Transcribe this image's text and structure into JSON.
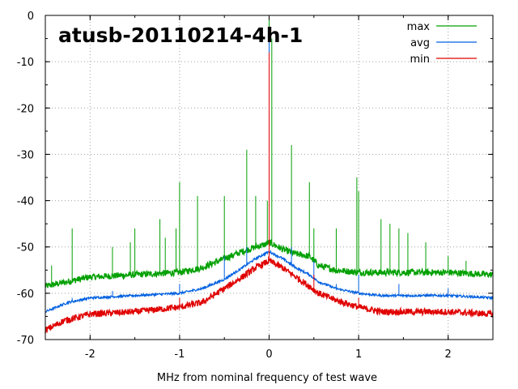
{
  "chart_data": {
    "type": "line",
    "title": "atusb-20110214-4h-1",
    "xlabel": "MHz from nominal frequency of test wave",
    "ylabel": "",
    "xlim": [
      -2.5,
      2.5
    ],
    "ylim": [
      -70,
      0
    ],
    "x_ticks": [
      -2,
      -1,
      0,
      1,
      2
    ],
    "y_ticks": [
      0,
      -10,
      -20,
      -30,
      -40,
      -50,
      -60,
      -70
    ],
    "grid": true,
    "grid_style": "dotted",
    "legend_position": "top-right",
    "series": [
      {
        "name": "max",
        "color": "#00a000",
        "x": [
          -2.5,
          -2.0,
          -1.5,
          -1.0,
          -0.75,
          -0.5,
          -0.3,
          -0.15,
          -0.05,
          0.0,
          0.05,
          0.15,
          0.3,
          0.45,
          0.55,
          0.75,
          1.0,
          1.5,
          2.0,
          2.5
        ],
        "y": [
          -58.5,
          -56.5,
          -56,
          -55.5,
          -54.5,
          -52.5,
          -51,
          -50,
          -49.5,
          -49,
          -49.5,
          -50.5,
          -51.5,
          -52,
          -54,
          -55,
          -55.5,
          -55.5,
          -55.5,
          -56
        ],
        "spikes": [
          {
            "x": -2.43,
            "y": -54
          },
          {
            "x": -2.2,
            "y": -46
          },
          {
            "x": -1.75,
            "y": -50
          },
          {
            "x": -1.55,
            "y": -49
          },
          {
            "x": -1.5,
            "y": -46
          },
          {
            "x": -1.22,
            "y": -44
          },
          {
            "x": -1.16,
            "y": -48
          },
          {
            "x": -1.04,
            "y": -46
          },
          {
            "x": -1.0,
            "y": -36
          },
          {
            "x": -0.8,
            "y": -39
          },
          {
            "x": -0.5,
            "y": -39
          },
          {
            "x": -0.25,
            "y": -29
          },
          {
            "x": -0.15,
            "y": -39
          },
          {
            "x": -0.02,
            "y": -40
          },
          {
            "x": 0.0,
            "y": 0
          },
          {
            "x": 0.03,
            "y": -5
          },
          {
            "x": 0.25,
            "y": -28
          },
          {
            "x": 0.45,
            "y": -36
          },
          {
            "x": 0.5,
            "y": -46
          },
          {
            "x": 0.75,
            "y": -46
          },
          {
            "x": 0.98,
            "y": -35
          },
          {
            "x": 1.0,
            "y": -38
          },
          {
            "x": 1.25,
            "y": -44
          },
          {
            "x": 1.35,
            "y": -45
          },
          {
            "x": 1.45,
            "y": -46
          },
          {
            "x": 1.55,
            "y": -47
          },
          {
            "x": 1.75,
            "y": -49
          },
          {
            "x": 2.0,
            "y": -52
          },
          {
            "x": 2.2,
            "y": -53
          },
          {
            "x": 2.5,
            "y": -48
          }
        ]
      },
      {
        "name": "avg",
        "color": "#0060e0",
        "x": [
          -2.5,
          -2.25,
          -2.0,
          -1.5,
          -1.0,
          -0.75,
          -0.5,
          -0.3,
          -0.15,
          -0.05,
          0.0,
          0.05,
          0.15,
          0.3,
          0.45,
          0.55,
          0.75,
          1.0,
          1.25,
          1.5,
          2.0,
          2.5
        ],
        "y": [
          -64,
          -62,
          -61,
          -60.5,
          -60,
          -59,
          -57,
          -54.5,
          -52.5,
          -51.5,
          -51,
          -51.5,
          -52.5,
          -54.5,
          -56,
          -57.5,
          -59,
          -60,
          -60.5,
          -60.5,
          -60.5,
          -61
        ],
        "spikes": [
          {
            "x": -2.2,
            "y": -61
          },
          {
            "x": -1.75,
            "y": -59.5
          },
          {
            "x": -1.0,
            "y": -58
          },
          {
            "x": -0.5,
            "y": -52
          },
          {
            "x": -0.25,
            "y": -50
          },
          {
            "x": 0.0,
            "y": -3
          },
          {
            "x": 0.25,
            "y": -50
          },
          {
            "x": 0.5,
            "y": -53
          },
          {
            "x": 0.75,
            "y": -58
          },
          {
            "x": 1.0,
            "y": -56
          },
          {
            "x": 1.45,
            "y": -58
          },
          {
            "x": 2.0,
            "y": -59
          }
        ]
      },
      {
        "name": "min",
        "color": "#e00000",
        "x": [
          -2.5,
          -2.3,
          -2.0,
          -1.5,
          -1.0,
          -0.75,
          -0.5,
          -0.3,
          -0.15,
          -0.05,
          0.0,
          0.05,
          0.15,
          0.3,
          0.45,
          0.55,
          0.75,
          1.0,
          1.25,
          1.5,
          2.0,
          2.5
        ],
        "y": [
          -68,
          -66,
          -64.5,
          -64,
          -63,
          -62,
          -59,
          -56.5,
          -54.5,
          -53.5,
          -53,
          -53.5,
          -54.5,
          -56.5,
          -58.5,
          -60,
          -61.5,
          -63,
          -64,
          -64,
          -64,
          -64.5
        ],
        "spikes": [
          {
            "x": -1.0,
            "y": -61
          },
          {
            "x": -0.25,
            "y": -55
          },
          {
            "x": 0.0,
            "y": -8
          },
          {
            "x": 0.5,
            "y": -56
          },
          {
            "x": 1.0,
            "y": -61
          }
        ]
      }
    ]
  }
}
